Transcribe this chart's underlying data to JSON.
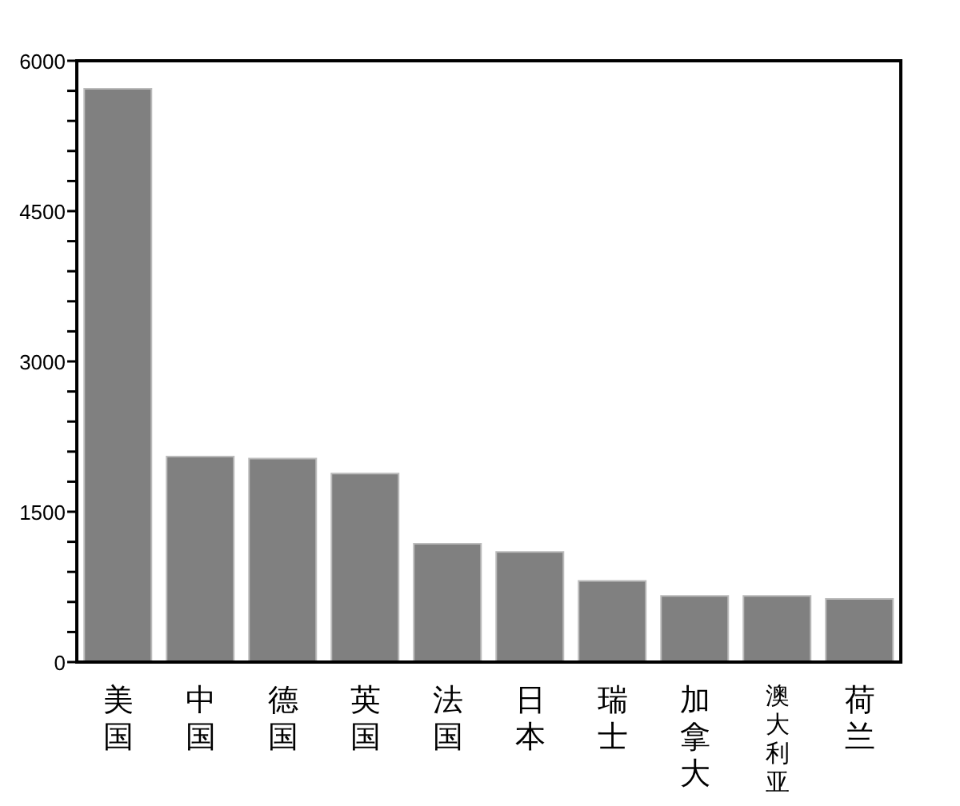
{
  "chart_data": {
    "type": "bar",
    "categories": [
      "美国",
      "中国",
      "德国",
      "英国",
      "法国",
      "日本",
      "瑞士",
      "加拿大",
      "澳大利亚",
      "荷兰"
    ],
    "values": [
      5720,
      2050,
      2030,
      1880,
      1180,
      1100,
      810,
      660,
      660,
      630
    ],
    "color": "#808080",
    "ylim": [
      0,
      6000
    ],
    "yticks": [
      0,
      {
        "value": 300,
        "label": null
      },
      {
        "value": 600,
        "label": null
      },
      {
        "value": 900,
        "label": null
      },
      {
        "value": 1200,
        "label": null
      },
      1500,
      {
        "value": 1800,
        "label": null
      },
      {
        "value": 2100,
        "label": null
      },
      {
        "value": 2400,
        "label": null
      },
      {
        "value": 2700,
        "label": null
      },
      3000,
      {
        "value": 3300,
        "label": null
      },
      {
        "value": 3600,
        "label": null
      },
      {
        "value": 3900,
        "label": null
      },
      {
        "value": 4200,
        "label": null
      },
      4500,
      {
        "value": 4800,
        "label": null
      },
      {
        "value": 5100,
        "label": null
      },
      {
        "value": 5400,
        "label": null
      },
      {
        "value": 5700,
        "label": null
      },
      6000
    ],
    "grid": false,
    "legend": false
  }
}
